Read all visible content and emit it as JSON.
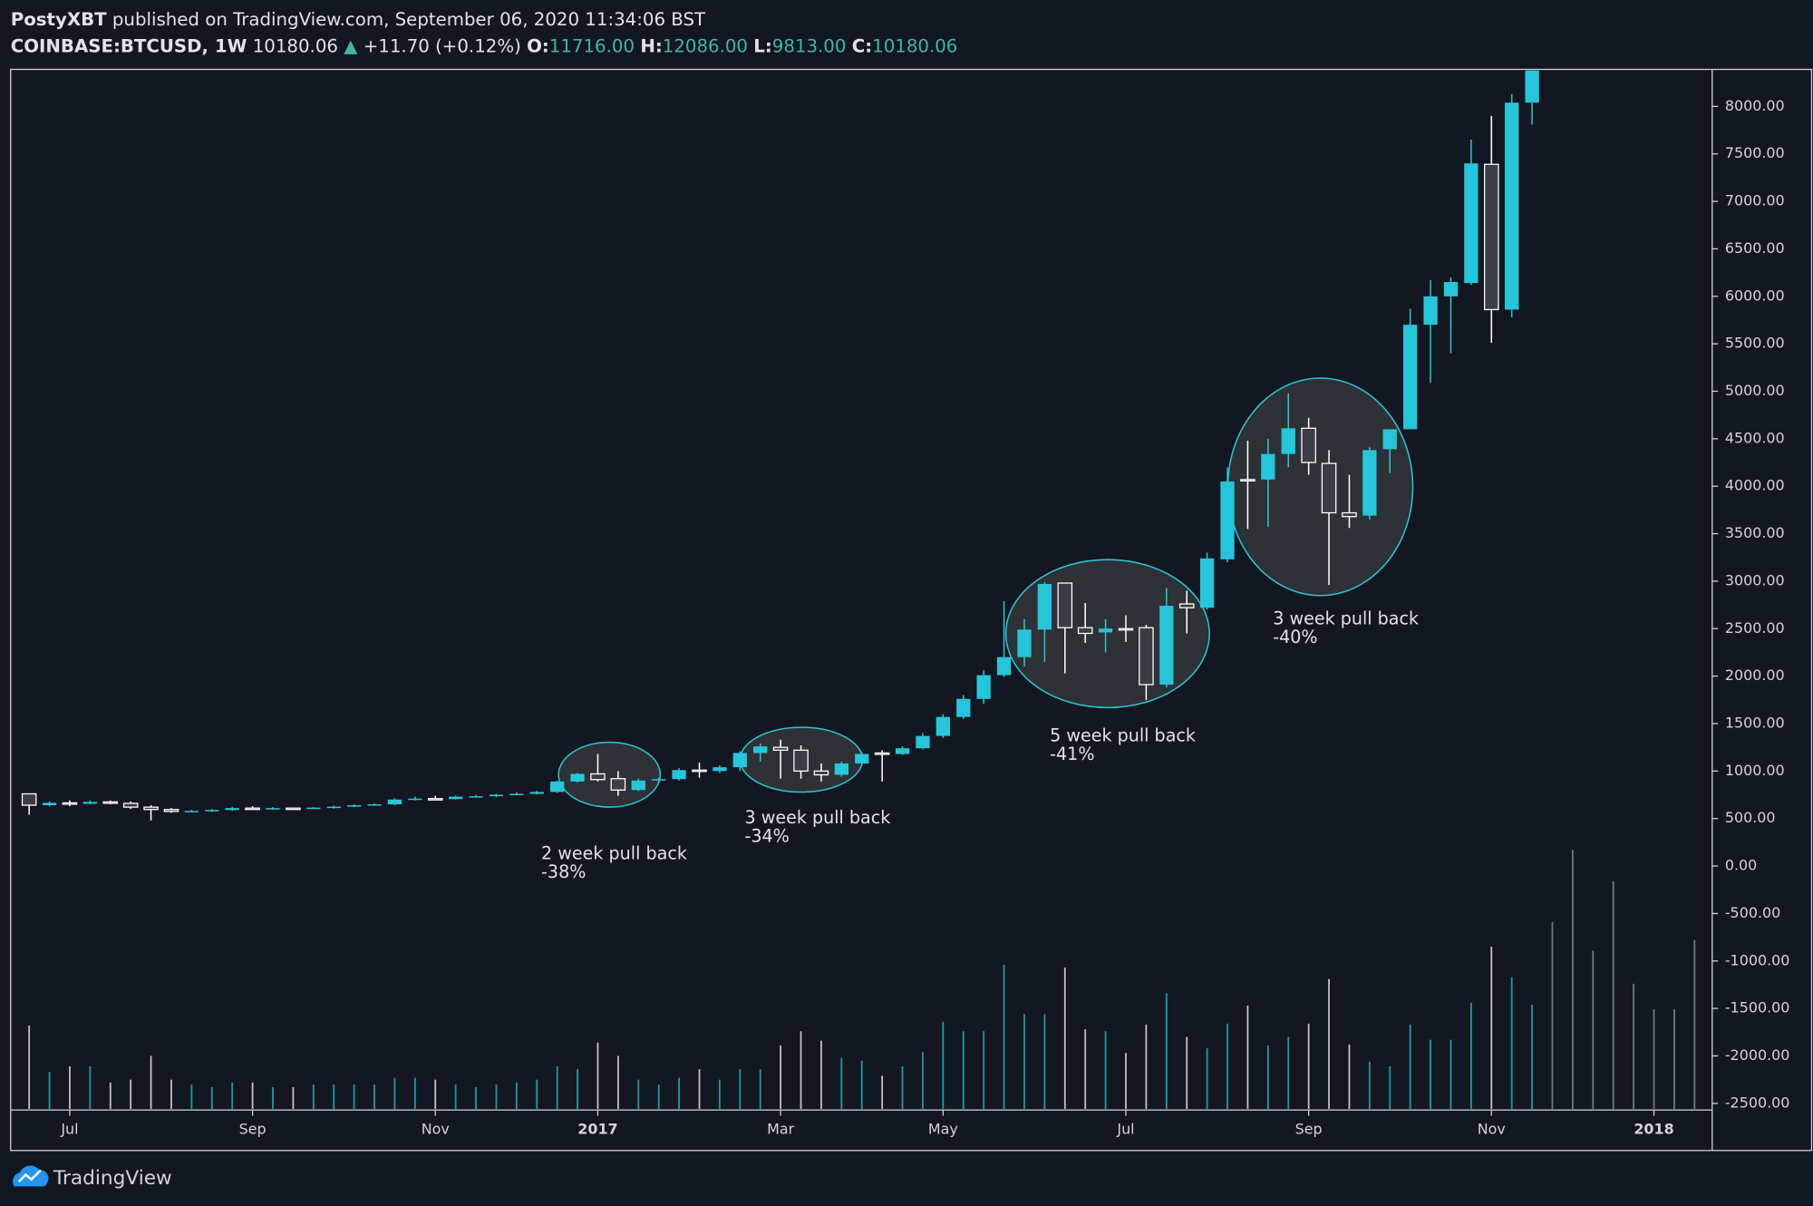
{
  "header": {
    "author": "PostyXBT",
    "published": "published on TradingView.com, September 06, 2020 11:34:06 BST"
  },
  "legend": {
    "symbol": "COINBASE:BTCUSD, 1W",
    "last": "10180.06",
    "arrow": "▲",
    "change": "+11.70 (+0.12%)",
    "open_label": "O:",
    "open": "11716.00",
    "high_label": "H:",
    "high": "12086.00",
    "low_label": "L:",
    "low": "9813.00",
    "close_label": "C:",
    "close": "10180.06"
  },
  "footer": {
    "brand": "TradingView"
  },
  "annotations": [
    {
      "text": "2 week pull back",
      "change": "-38%"
    },
    {
      "text": "3 week pull back",
      "change": "-34%"
    },
    {
      "text": "5 week pull back",
      "change": "-41%"
    },
    {
      "text": "3 week pull back",
      "change": "-40%"
    }
  ],
  "chart_data": {
    "type": "candlestick",
    "up_color": "#26c6da",
    "down_color": "#ffffff",
    "volume_color": "#8d99a6",
    "categories": [
      null,
      null,
      "Jul",
      null,
      null,
      null,
      null,
      null,
      null,
      null,
      null,
      "Sep",
      null,
      null,
      null,
      null,
      null,
      null,
      null,
      null,
      "Nov",
      null,
      null,
      null,
      null,
      null,
      null,
      null,
      "2017",
      null,
      null,
      null,
      null,
      null,
      null,
      null,
      null,
      "Mar",
      null,
      null,
      null,
      null,
      null,
      null,
      null,
      "May",
      null,
      null,
      null,
      null,
      null,
      null,
      null,
      null,
      "Jul",
      null,
      null,
      null,
      null,
      null,
      null,
      null,
      null,
      "Sep",
      null,
      null,
      null,
      null,
      null,
      null,
      null,
      null,
      "Nov",
      null,
      null,
      null,
      null,
      null,
      null,
      null,
      "2018",
      null,
      null,
      null
    ],
    "open": [
      760,
      640,
      665,
      655,
      675,
      660,
      620,
      595,
      575,
      580,
      590,
      610,
      605,
      610,
      605,
      615,
      625,
      640,
      650,
      700,
      710,
      705,
      730,
      735,
      750,
      760,
      780,
      890,
      970,
      920,
      800,
      900,
      915,
      1010,
      1000,
      1040,
      1190,
      1250,
      1220,
      1000,
      960,
      1080,
      1190,
      1180,
      1240,
      1370,
      1570,
      1760,
      2010,
      2200,
      2490,
      2980,
      2510,
      2460,
      2500,
      2510,
      1910,
      2760,
      2720,
      3230,
      4070,
      4070,
      4340,
      4610,
      4240,
      3720,
      3690,
      4390,
      4600,
      5700,
      6000,
      6140,
      7390,
      5860,
      8040,
      null,
      null,
      null,
      null,
      null,
      null,
      null,
      null,
      null
    ],
    "high": [
      760,
      680,
      690,
      690,
      690,
      680,
      640,
      610,
      590,
      600,
      620,
      630,
      620,
      615,
      620,
      635,
      650,
      660,
      715,
      730,
      740,
      740,
      750,
      760,
      775,
      790,
      900,
      980,
      1180,
      1000,
      920,
      930,
      1030,
      1090,
      1060,
      1210,
      1290,
      1330,
      1270,
      1080,
      1100,
      1200,
      1220,
      1260,
      1400,
      1600,
      1800,
      2060,
      2790,
      2600,
      2990,
      2980,
      2770,
      2600,
      2640,
      2540,
      2930,
      2900,
      3300,
      4200,
      4480,
      4500,
      4980,
      4720,
      4380,
      4120,
      4410,
      4600,
      5870,
      6170,
      6200,
      7650,
      7900,
      8130,
      8500,
      null,
      null,
      null,
      null,
      null,
      null,
      null,
      null,
      null
    ],
    "low": [
      540,
      630,
      630,
      650,
      650,
      600,
      480,
      560,
      565,
      570,
      580,
      590,
      595,
      595,
      600,
      605,
      620,
      635,
      640,
      690,
      690,
      700,
      720,
      725,
      745,
      755,
      770,
      880,
      890,
      740,
      790,
      890,
      900,
      930,
      980,
      1000,
      1100,
      920,
      920,
      890,
      940,
      1060,
      890,
      1170,
      1230,
      1350,
      1550,
      1710,
      1990,
      2100,
      2150,
      2030,
      2350,
      2250,
      2360,
      1750,
      1880,
      2450,
      2700,
      3200,
      3550,
      3570,
      4200,
      4120,
      2960,
      3560,
      3650,
      4140,
      4600,
      5090,
      5400,
      6120,
      5510,
      5780,
      7810,
      null,
      null,
      null,
      null,
      null,
      null,
      null,
      null,
      null
    ],
    "close": [
      640,
      665,
      655,
      675,
      660,
      620,
      595,
      575,
      580,
      590,
      610,
      605,
      610,
      605,
      615,
      625,
      640,
      650,
      700,
      710,
      705,
      730,
      735,
      750,
      760,
      780,
      890,
      970,
      910,
      800,
      900,
      915,
      1010,
      1000,
      1040,
      1190,
      1260,
      1220,
      1000,
      960,
      1080,
      1180,
      1180,
      1240,
      1370,
      1570,
      1760,
      2010,
      2200,
      2490,
      2970,
      2510,
      2450,
      2500,
      2490,
      1910,
      2740,
      2720,
      3240,
      4050,
      4060,
      4340,
      4610,
      4250,
      3720,
      3680,
      4380,
      4600,
      5700,
      6000,
      6150,
      7400,
      5860,
      8040,
      8500,
      null,
      null,
      null,
      null,
      null,
      null,
      null,
      null,
      null
    ],
    "volume": [
      -1680,
      -2170,
      -2110,
      -2110,
      -2280,
      -2250,
      -2000,
      -2250,
      -2300,
      -2330,
      -2280,
      -2280,
      -2330,
      -2330,
      -2300,
      -2300,
      -2300,
      -2300,
      -2230,
      -2230,
      -2250,
      -2300,
      -2330,
      -2300,
      -2280,
      -2250,
      -2110,
      -2140,
      -1860,
      -2000,
      -2250,
      -2300,
      -2230,
      -2140,
      -2250,
      -2140,
      -2140,
      -1890,
      -1740,
      -1840,
      -2020,
      -2050,
      -2210,
      -2110,
      -1960,
      -1640,
      -1740,
      -1740,
      -1040,
      -1560,
      -1560,
      -1070,
      -1720,
      -1740,
      -1970,
      -1670,
      -1340,
      -1800,
      -1920,
      -1660,
      -1470,
      -1890,
      -1800,
      -1660,
      -1190,
      -1880,
      -2060,
      -2110,
      -1670,
      -1830,
      -1830,
      -1440,
      -850,
      -1170,
      -1460,
      -590,
      170,
      -890,
      -160,
      -1240,
      -1510,
      -1510,
      -780,
      null
    ],
    "ylim": [
      -2570,
      8390
    ],
    "yticks": [
      {
        "value": 8000,
        "label": "8000.00"
      },
      {
        "value": 7500,
        "label": "7500.00"
      },
      {
        "value": 7000,
        "label": "7000.00"
      },
      {
        "value": 6500,
        "label": "6500.00"
      },
      {
        "value": 6000,
        "label": "6000.00"
      },
      {
        "value": 5500,
        "label": "5500.00"
      },
      {
        "value": 5000,
        "label": "5000.00"
      },
      {
        "value": 4500,
        "label": "4500.00"
      },
      {
        "value": 4000,
        "label": "4000.00"
      },
      {
        "value": 3500,
        "label": "3500.00"
      },
      {
        "value": 3000,
        "label": "3000.00"
      },
      {
        "value": 2500,
        "label": "2500.00"
      },
      {
        "value": 2000,
        "label": "2000.00"
      },
      {
        "value": 1500,
        "label": "1500.00"
      },
      {
        "value": 1000,
        "label": "1000.00"
      },
      {
        "value": 500,
        "label": "500.00"
      },
      {
        "value": 0,
        "label": "0.00"
      },
      {
        "value": -500,
        "label": "-500.00"
      },
      {
        "value": -1000,
        "label": "-1000.00"
      },
      {
        "value": -1500,
        "label": "-1500.00"
      },
      {
        "value": -2000,
        "label": "-2000.00"
      },
      {
        "value": -2500,
        "label": "-2500.00"
      }
    ]
  }
}
